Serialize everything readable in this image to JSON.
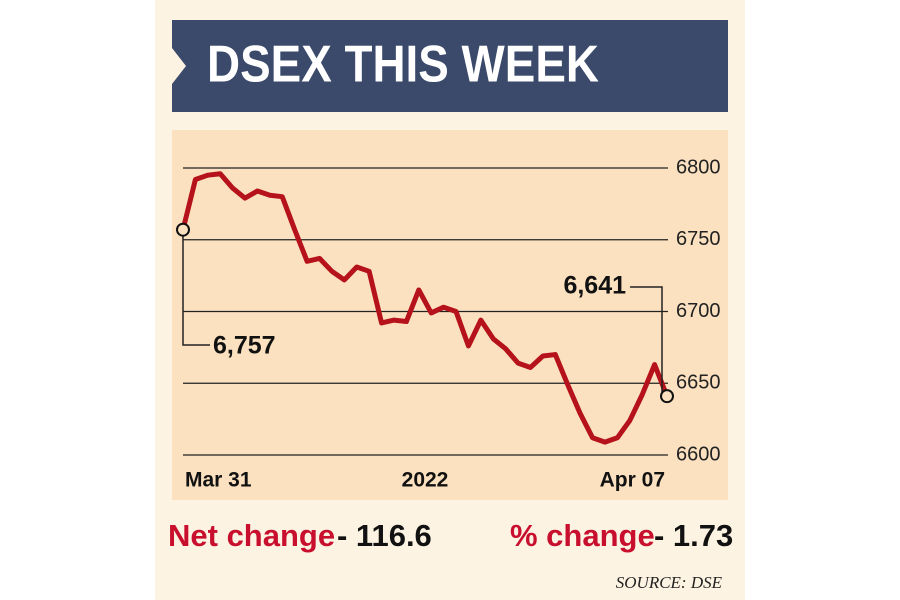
{
  "chart_data": {
    "type": "line",
    "title": "DSEX THIS WEEK",
    "x_labels": [
      "Mar 31",
      "2022",
      "Apr 07"
    ],
    "values": [
      6757,
      6792,
      6795,
      6796,
      6786,
      6779,
      6784,
      6781,
      6780,
      6757,
      6735,
      6737,
      6728,
      6722,
      6731,
      6728,
      6692,
      6694,
      6693,
      6715,
      6699,
      6703,
      6700,
      6676,
      6694,
      6681,
      6674,
      6664,
      6661,
      6669,
      6670,
      6649,
      6629,
      6612,
      6609,
      6612,
      6624,
      6642,
      6663,
      6641
    ],
    "color": "#b5121b",
    "ylim": [
      6600,
      6800
    ],
    "yticks": [
      6600,
      6650,
      6700,
      6750,
      6800
    ],
    "grid": true,
    "annotations": [
      "6,757",
      "6,641"
    ],
    "footer": {
      "net_change_label": "Net change",
      "net_change_value": "- 116.6",
      "pct_change_label": "% change",
      "pct_change_value": "- 1.73",
      "source": "SOURCE: DSE"
    }
  }
}
